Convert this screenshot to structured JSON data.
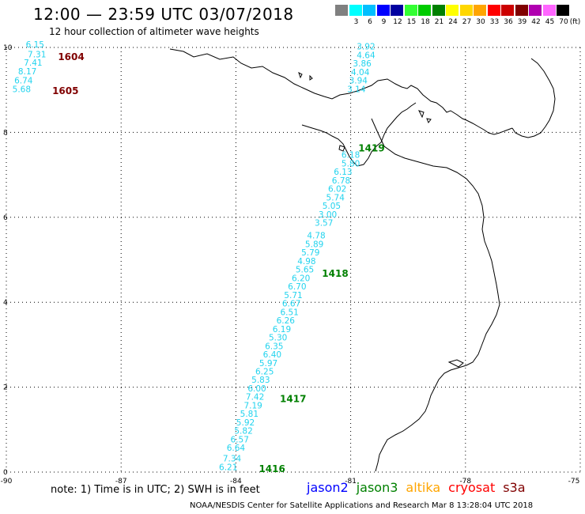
{
  "header": {
    "title": "12:00 — 23:59 UTC 03/07/2018",
    "subtitle": "12 hour collection of altimeter wave heights"
  },
  "colorbar": {
    "swatches": [
      {
        "color": "#808080",
        "label": ""
      },
      {
        "color": "#00ffff",
        "label": "3"
      },
      {
        "color": "#00bfff",
        "label": "6"
      },
      {
        "color": "#0000ff",
        "label": "9"
      },
      {
        "color": "#0000a0",
        "label": "12"
      },
      {
        "color": "#33ff33",
        "label": "15"
      },
      {
        "color": "#00cc00",
        "label": "18"
      },
      {
        "color": "#008000",
        "label": "21"
      },
      {
        "color": "#ffff00",
        "label": "24"
      },
      {
        "color": "#ffd700",
        "label": "27"
      },
      {
        "color": "#ffa500",
        "label": "30"
      },
      {
        "color": "#ff0000",
        "label": "33"
      },
      {
        "color": "#cc0000",
        "label": "36"
      },
      {
        "color": "#800000",
        "label": "39"
      },
      {
        "color": "#b000b0",
        "label": "42"
      },
      {
        "color": "#ff66ff",
        "label": "45"
      },
      {
        "color": "#000000",
        "label": "70"
      }
    ],
    "unit": "(ft)"
  },
  "axes": {
    "x_ticks": [
      "-90",
      "-87",
      "-84",
      "-81",
      "-78",
      "-75"
    ],
    "y_ticks": [
      "10",
      "8",
      "6",
      "4",
      "2",
      "0"
    ],
    "lon_range": [
      -90,
      -75
    ],
    "lat_range": [
      0,
      10
    ]
  },
  "track_points": [
    {
      "v": "3.92",
      "lon": -80.6,
      "lat": 9.95
    },
    {
      "v": "4.64",
      "lon": -80.6,
      "lat": 9.75
    },
    {
      "v": "3.86",
      "lon": -80.7,
      "lat": 9.55
    },
    {
      "v": "4.04",
      "lon": -80.75,
      "lat": 9.35
    },
    {
      "v": "3.94",
      "lon": -80.8,
      "lat": 9.15
    },
    {
      "v": "3.14",
      "lon": -80.85,
      "lat": 8.95
    },
    {
      "v": "6.18",
      "lon": -81.0,
      "lat": 7.4
    },
    {
      "v": "5.80",
      "lon": -81.0,
      "lat": 7.2
    },
    {
      "v": "6.13",
      "lon": -81.2,
      "lat": 7.0
    },
    {
      "v": "6.78",
      "lon": -81.25,
      "lat": 6.8
    },
    {
      "v": "6.02",
      "lon": -81.35,
      "lat": 6.6
    },
    {
      "v": "5.74",
      "lon": -81.4,
      "lat": 6.4
    },
    {
      "v": "5.05",
      "lon": -81.5,
      "lat": 6.2
    },
    {
      "v": "3.00",
      "lon": -81.6,
      "lat": 6.0
    },
    {
      "v": "3.57",
      "lon": -81.7,
      "lat": 5.8
    },
    {
      "v": "4.78",
      "lon": -81.9,
      "lat": 5.5
    },
    {
      "v": "5.89",
      "lon": -81.95,
      "lat": 5.3
    },
    {
      "v": "5.79",
      "lon": -82.05,
      "lat": 5.1
    },
    {
      "v": "4.98",
      "lon": -82.15,
      "lat": 4.9
    },
    {
      "v": "5.65",
      "lon": -82.2,
      "lat": 4.7
    },
    {
      "v": "6.20",
      "lon": -82.3,
      "lat": 4.5
    },
    {
      "v": "6.70",
      "lon": -82.4,
      "lat": 4.3
    },
    {
      "v": "5.71",
      "lon": -82.5,
      "lat": 4.1
    },
    {
      "v": "6.67",
      "lon": -82.55,
      "lat": 3.9
    },
    {
      "v": "6.51",
      "lon": -82.6,
      "lat": 3.7
    },
    {
      "v": "6.26",
      "lon": -82.7,
      "lat": 3.5
    },
    {
      "v": "6.19",
      "lon": -82.8,
      "lat": 3.3
    },
    {
      "v": "5.30",
      "lon": -82.9,
      "lat": 3.1
    },
    {
      "v": "6.35",
      "lon": -83.0,
      "lat": 2.9
    },
    {
      "v": "6.40",
      "lon": -83.05,
      "lat": 2.7
    },
    {
      "v": "5.97",
      "lon": -83.15,
      "lat": 2.5
    },
    {
      "v": "6.25",
      "lon": -83.25,
      "lat": 2.3
    },
    {
      "v": "5.83",
      "lon": -83.35,
      "lat": 2.1
    },
    {
      "v": "6.00",
      "lon": -83.45,
      "lat": 1.9
    },
    {
      "v": "7.42",
      "lon": -83.5,
      "lat": 1.7
    },
    {
      "v": "7.19",
      "lon": -83.55,
      "lat": 1.5
    },
    {
      "v": "5.81",
      "lon": -83.65,
      "lat": 1.3
    },
    {
      "v": "5.92",
      "lon": -83.75,
      "lat": 1.1
    },
    {
      "v": "5.82",
      "lon": -83.8,
      "lat": 0.9
    },
    {
      "v": "6.57",
      "lon": -83.9,
      "lat": 0.7
    },
    {
      "v": "6.64",
      "lon": -84.0,
      "lat": 0.5
    },
    {
      "v": "7.34",
      "lon": -84.1,
      "lat": 0.25
    },
    {
      "v": "6.21",
      "lon": -84.2,
      "lat": 0.05
    },
    {
      "v": "6.15",
      "lon": -89.25,
      "lat": 10.0
    },
    {
      "v": "7.31",
      "lon": -89.2,
      "lat": 9.77
    },
    {
      "v": "7.41",
      "lon": -89.3,
      "lat": 9.57
    },
    {
      "v": "8.17",
      "lon": -89.45,
      "lat": 9.37
    },
    {
      "v": "6.74",
      "lon": -89.55,
      "lat": 9.15
    },
    {
      "v": "5.68",
      "lon": -89.6,
      "lat": 8.95
    }
  ],
  "pass_labels": [
    {
      "text": "1604",
      "color": "#800000",
      "lon": -88.65,
      "lat": 9.7
    },
    {
      "text": "1605",
      "color": "#800000",
      "lon": -88.8,
      "lat": 8.9
    },
    {
      "text": "1419",
      "color": "#008000",
      "lon": -80.8,
      "lat": 7.55
    },
    {
      "text": "1418",
      "color": "#008000",
      "lon": -81.75,
      "lat": 4.6
    },
    {
      "text": "1417",
      "color": "#008000",
      "lon": -82.85,
      "lat": 1.65
    },
    {
      "text": "1416",
      "color": "#008000",
      "lon": -83.4,
      "lat": 0.0
    }
  ],
  "note": "note:  1) Time is in UTC;  2) SWH is in feet",
  "legend": [
    {
      "name": "jason2",
      "color": "#0000ff"
    },
    {
      "name": "jason3",
      "color": "#008000"
    },
    {
      "name": "altika",
      "color": "#ffa500"
    },
    {
      "name": "cryosat",
      "color": "#ff0000"
    },
    {
      "name": "s3a",
      "color": "#800000"
    }
  ],
  "footer": "NOAA/NESDIS Center for Satellite Applications and Research     Mar  8 13:28:04 UTC 2018"
}
